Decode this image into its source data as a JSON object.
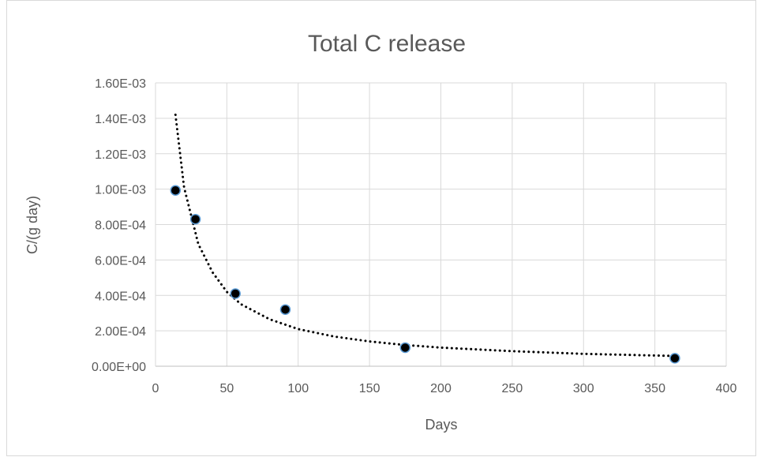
{
  "chart_data": {
    "type": "scatter",
    "title": "Total C release",
    "xlabel": "Days",
    "ylabel": "C/(g day)",
    "xlim": [
      0,
      400
    ],
    "ylim": [
      0,
      0.0016
    ],
    "x_ticks": [
      0,
      50,
      100,
      150,
      200,
      250,
      300,
      350,
      400
    ],
    "y_ticks": [
      0,
      0.0002,
      0.0004,
      0.0006,
      0.0008,
      0.001,
      0.0012,
      0.0014,
      0.0016
    ],
    "x_tick_labels": [
      "0",
      "50",
      "100",
      "150",
      "200",
      "250",
      "300",
      "350",
      "400"
    ],
    "y_tick_labels": [
      "0.00E+00",
      "2.00E-04",
      "4.00E-04",
      "6.00E-04",
      "8.00E-04",
      "1.00E-03",
      "1.20E-03",
      "1.40E-03",
      "1.60E-03"
    ],
    "grid": true,
    "legend": "none",
    "series": [
      {
        "points": [
          {
            "x": 14,
            "y": 0.000993
          },
          {
            "x": 28,
            "y": 0.00083
          },
          {
            "x": 56,
            "y": 0.00041
          },
          {
            "x": 91,
            "y": 0.00032
          },
          {
            "x": 175,
            "y": 0.000105
          },
          {
            "x": 364,
            "y": 4.5e-05
          }
        ],
        "marker_color": "#000000",
        "marker_edge_color": "#5b9bd5"
      }
    ],
    "trendline": {
      "type": "power",
      "style": "dotted",
      "color": "#000000",
      "x": [
        14,
        20,
        30,
        40,
        50,
        60,
        80,
        100,
        125,
        150,
        175,
        200,
        250,
        300,
        364
      ],
      "y": [
        0.00142,
        0.00101,
        0.00069,
        0.00053,
        0.00042,
        0.00035,
        0.000265,
        0.00021,
        0.000168,
        0.00014,
        0.00012,
        0.000105,
        8.5e-05,
        7e-05,
        5.8e-05
      ]
    }
  }
}
